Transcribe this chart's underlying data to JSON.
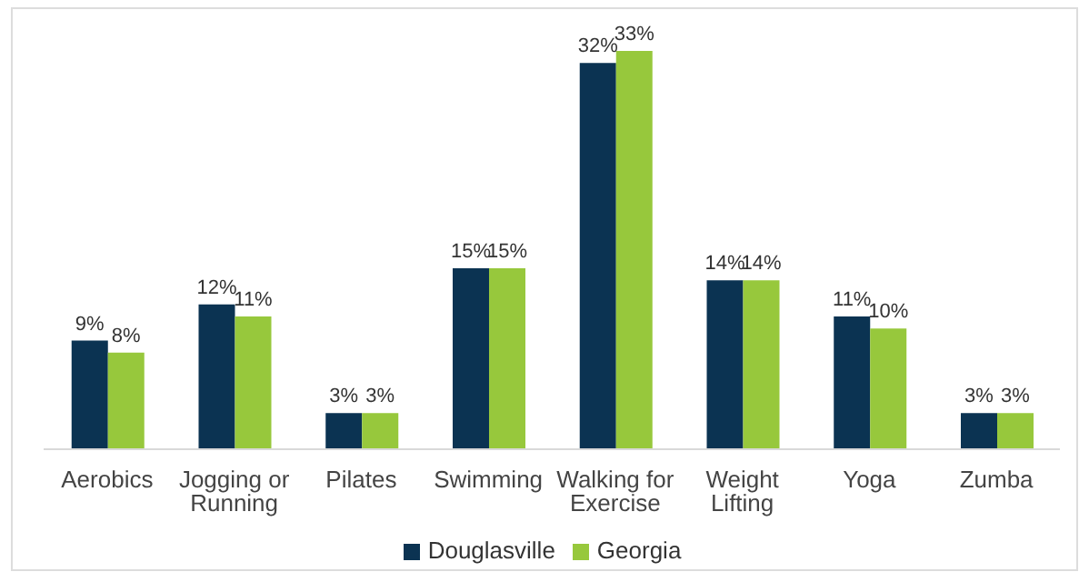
{
  "chart_data": {
    "type": "bar",
    "categories": [
      "Aerobics",
      "Jogging or Running",
      "Pilates",
      "Swimming",
      "Walking for Exercise",
      "Weight Lifting",
      "Yoga",
      "Zumba"
    ],
    "series": [
      {
        "name": "Douglasville",
        "color": "#0b3352",
        "values": [
          9,
          12,
          3,
          15,
          32,
          14,
          11,
          3
        ],
        "value_labels": [
          "9%",
          "12%",
          "3%",
          "15%",
          "32%",
          "14%",
          "11%",
          "3%"
        ]
      },
      {
        "name": "Georgia",
        "color": "#97c83c",
        "values": [
          8,
          11,
          3,
          15,
          33,
          14,
          10,
          3
        ],
        "value_labels": [
          "8%",
          "11%",
          "3%",
          "15%",
          "33%",
          "14%",
          "10%",
          "3%"
        ]
      }
    ],
    "legend": "bottom",
    "grid": false
  }
}
